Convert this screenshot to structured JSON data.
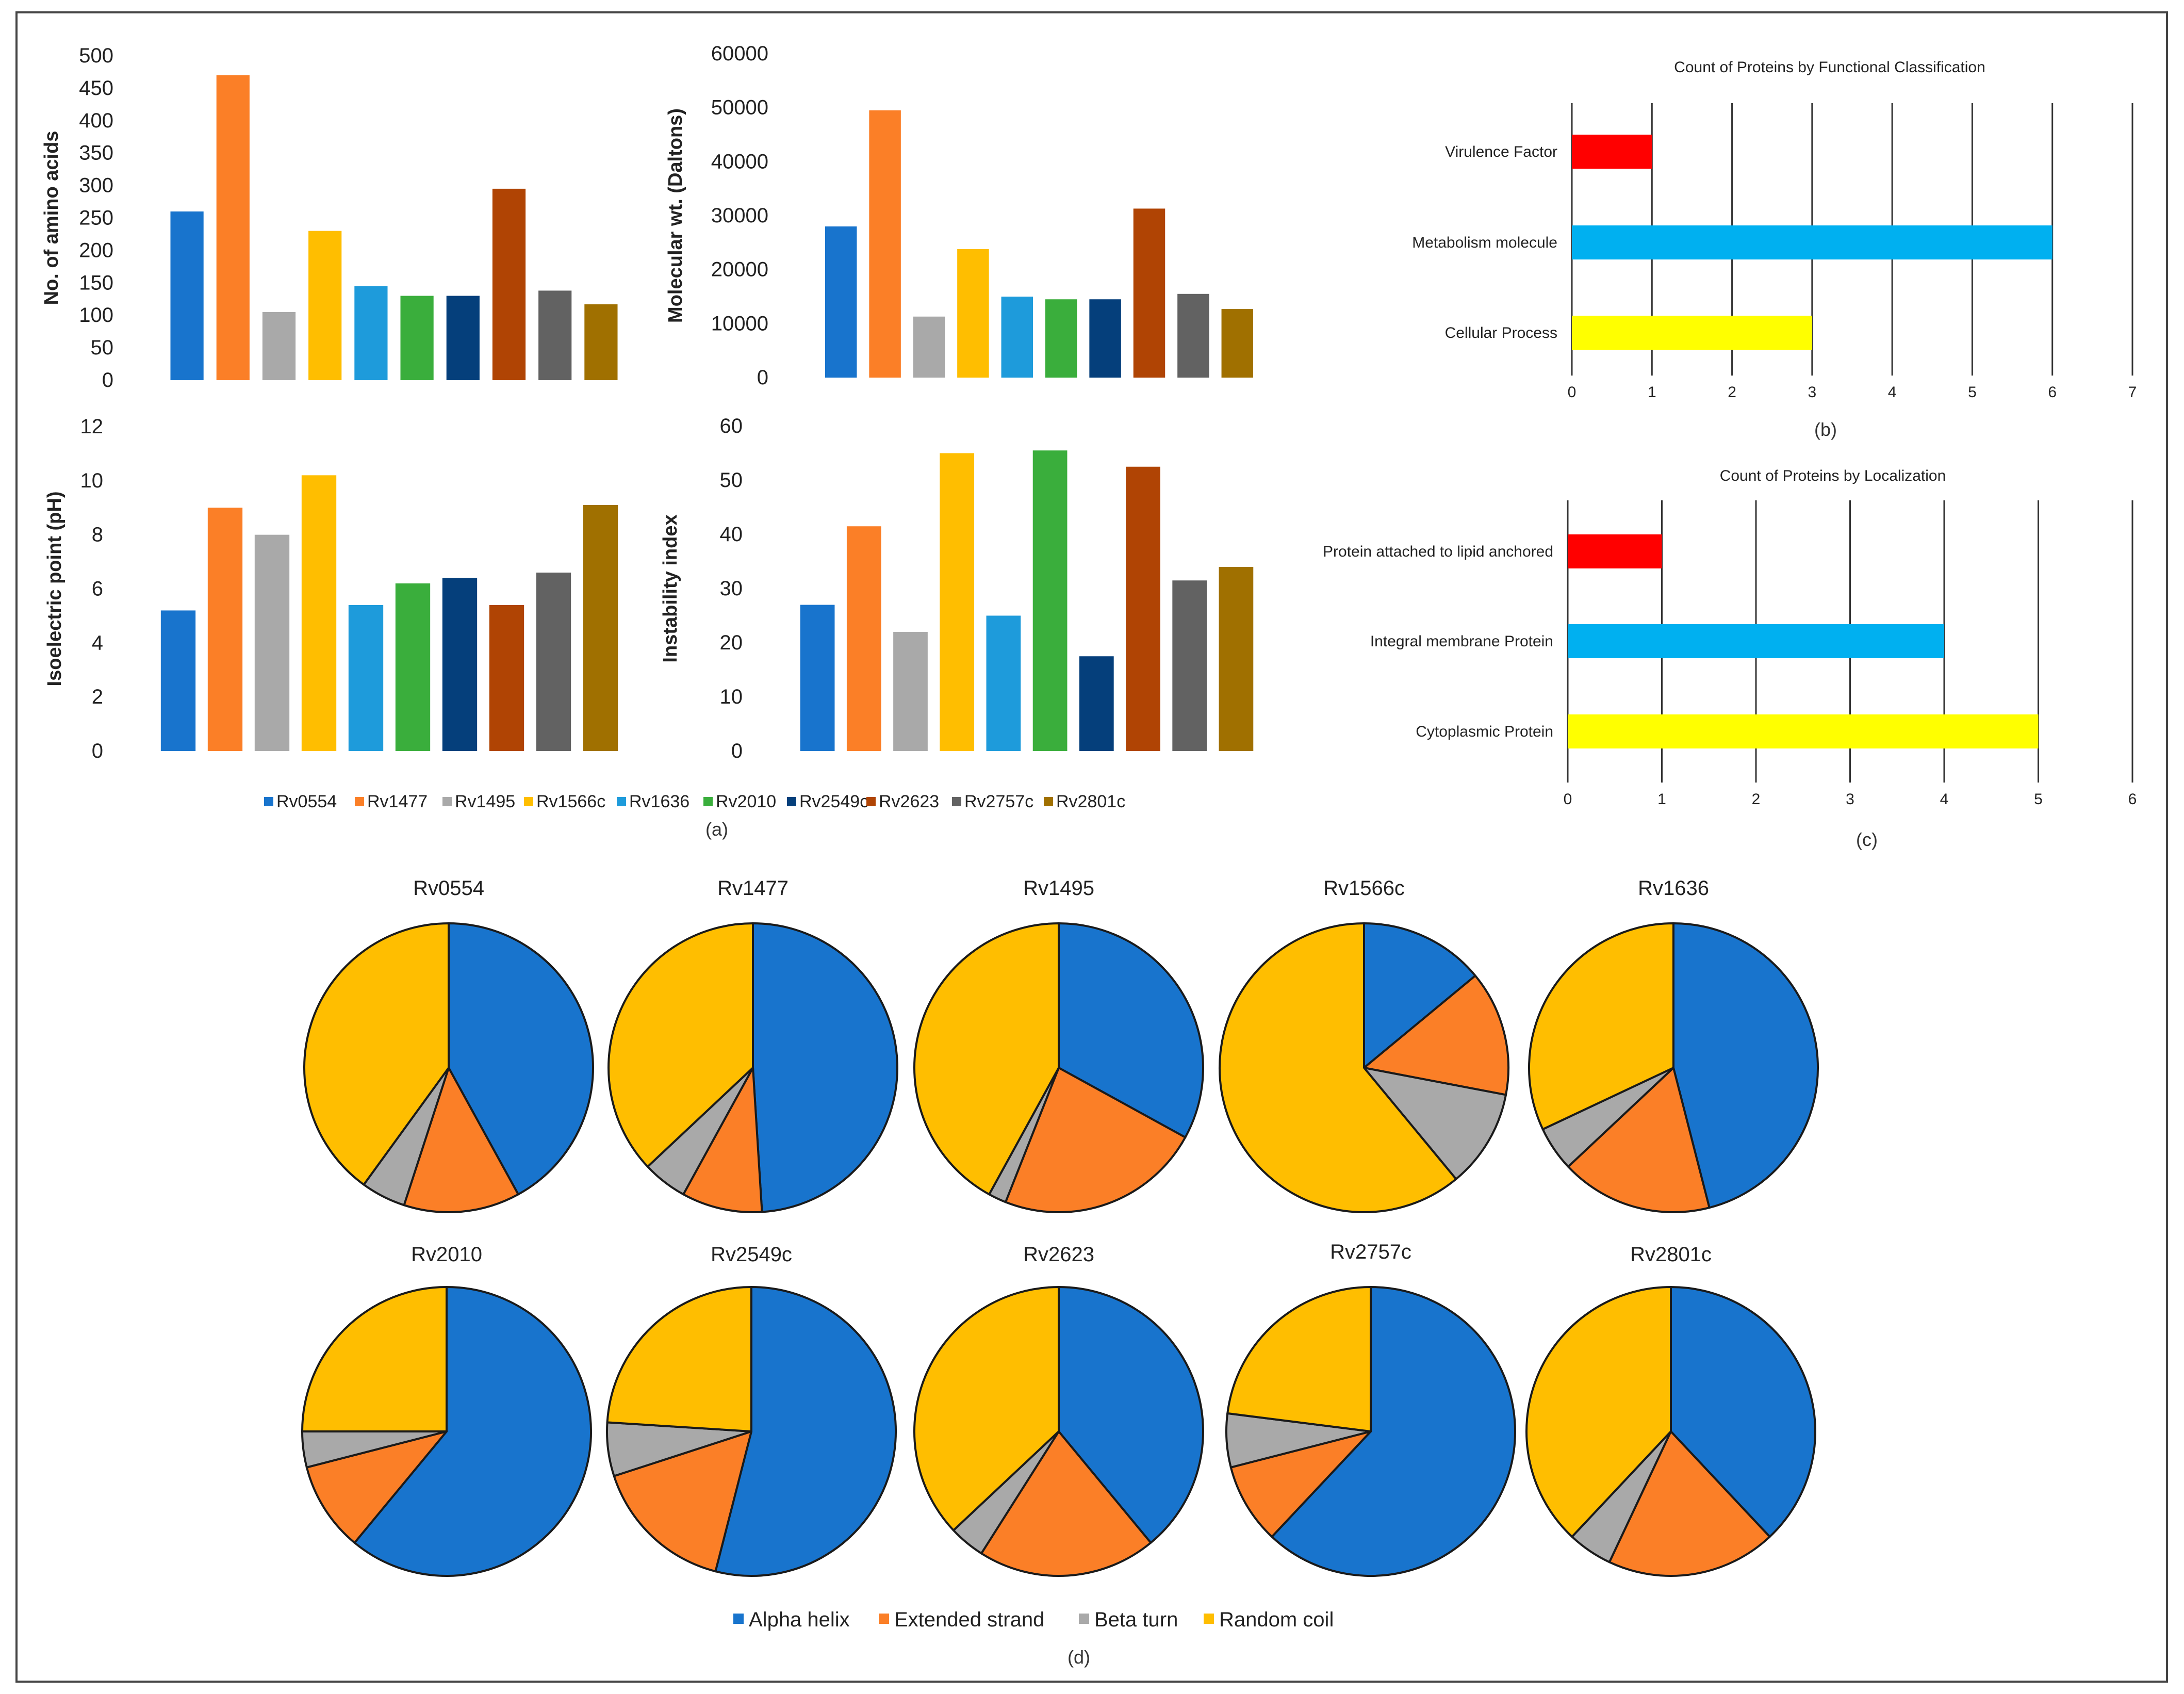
{
  "proteins": [
    "Rv0554",
    "Rv1477",
    "Rv1495",
    "Rv1566c",
    "Rv1636",
    "Rv2010",
    "Rv2549c",
    "Rv2623",
    "Rv2757c",
    "Rv2801c"
  ],
  "protein_colors": [
    "#1874cd",
    "#fb7f27",
    "#a9a9a9",
    "#ffbe00",
    "#1e9bdb",
    "#3aae3c",
    "#053f7b",
    "#b04404",
    "#626262",
    "#a07000"
  ],
  "panel_labels": {
    "a": "(a)",
    "b": "(b)",
    "c": "(c)",
    "d": "(d)"
  },
  "chart_data": [
    {
      "id": "amino-acids",
      "type": "bar",
      "categories": [
        "Rv0554",
        "Rv1477",
        "Rv1495",
        "Rv1566c",
        "Rv1636",
        "Rv2010",
        "Rv2549c",
        "Rv2623",
        "Rv2757c",
        "Rv2801c"
      ],
      "values": [
        260,
        470,
        105,
        230,
        145,
        130,
        130,
        295,
        138,
        117
      ],
      "ylabel": "No. of amino acids",
      "ylim": [
        0,
        500
      ],
      "yticks": [
        "0",
        "50",
        "100",
        "150",
        "200",
        "250",
        "300",
        "350",
        "400",
        "450",
        "500"
      ]
    },
    {
      "id": "molecular-weight",
      "type": "bar",
      "categories": [
        "Rv0554",
        "Rv1477",
        "Rv1495",
        "Rv1566c",
        "Rv1636",
        "Rv2010",
        "Rv2549c",
        "Rv2623",
        "Rv2757c",
        "Rv2801c"
      ],
      "values": [
        28000,
        49500,
        11300,
        23800,
        15000,
        14500,
        14500,
        31300,
        15500,
        12700
      ],
      "ylabel": "Molecular wt. (Daltons)",
      "ylim": [
        0,
        60000
      ],
      "yticks": [
        "0",
        "10000",
        "20000",
        "30000",
        "40000",
        "50000",
        "60000"
      ]
    },
    {
      "id": "isoelectric-point",
      "type": "bar",
      "categories": [
        "Rv0554",
        "Rv1477",
        "Rv1495",
        "Rv1566c",
        "Rv1636",
        "Rv2010",
        "Rv2549c",
        "Rv2623",
        "Rv2757c",
        "Rv2801c"
      ],
      "values": [
        5.2,
        9.0,
        8.0,
        10.2,
        5.4,
        6.2,
        6.4,
        5.4,
        6.6,
        9.1
      ],
      "ylabel": "Isoelectric point (pH)",
      "ylim": [
        0,
        12
      ],
      "yticks": [
        "0",
        "2",
        "4",
        "6",
        "8",
        "10",
        "12"
      ]
    },
    {
      "id": "instability-index",
      "type": "bar",
      "categories": [
        "Rv0554",
        "Rv1477",
        "Rv1495",
        "Rv1566c",
        "Rv1636",
        "Rv2010",
        "Rv2549c",
        "Rv2623",
        "Rv2757c",
        "Rv2801c"
      ],
      "values": [
        27,
        41.5,
        22,
        55,
        25,
        55.5,
        17.5,
        52.5,
        31.5,
        34
      ],
      "ylabel": "Instability index",
      "ylim": [
        0,
        60
      ],
      "yticks": [
        "0",
        "10",
        "20",
        "30",
        "40",
        "50",
        "60"
      ]
    },
    {
      "id": "functional-classification",
      "type": "bar",
      "orientation": "horizontal",
      "title": "Count of Proteins by Functional Classification",
      "categories": [
        "Virulence Factor",
        "Metabolism molecule",
        "Cellular Process"
      ],
      "values": [
        1,
        6,
        3
      ],
      "colors": [
        "#ff0000",
        "#00b0f0",
        "#ffff00"
      ],
      "xlim": [
        0,
        7
      ],
      "xticks": [
        "0",
        "1",
        "2",
        "3",
        "4",
        "5",
        "6",
        "7"
      ],
      "grid": true
    },
    {
      "id": "localization",
      "type": "bar",
      "orientation": "horizontal",
      "title": "Count of Proteins by Localization",
      "categories": [
        "Protein attached to lipid anchored",
        "Integral membrane Protein",
        "Cytoplasmic Protein"
      ],
      "values": [
        1,
        4,
        5
      ],
      "colors": [
        "#ff0000",
        "#00b0f0",
        "#ffff00"
      ],
      "xlim": [
        0,
        6
      ],
      "xticks": [
        "0",
        "1",
        "2",
        "3",
        "4",
        "5",
        "6"
      ],
      "grid": true
    },
    {
      "id": "secondary-structure",
      "type": "pie",
      "legend": [
        "Alpha helix",
        "Extended strand",
        "Beta turn",
        "Random coil"
      ],
      "colors": [
        "#1874cd",
        "#fb7f27",
        "#a9a9a9",
        "#ffbe00"
      ],
      "pies": [
        {
          "title": "Rv0554",
          "values": [
            42,
            13,
            5,
            40
          ]
        },
        {
          "title": "Rv1477",
          "values": [
            49,
            9,
            5,
            37
          ]
        },
        {
          "title": "Rv1495",
          "values": [
            33,
            23,
            2,
            42
          ]
        },
        {
          "title": "Rv1566c",
          "values": [
            14,
            14,
            11,
            61
          ]
        },
        {
          "title": "Rv1636",
          "values": [
            46,
            17,
            5,
            32
          ]
        },
        {
          "title": "Rv2010",
          "values": [
            61,
            10,
            4,
            25
          ]
        },
        {
          "title": "Rv2549c",
          "values": [
            54,
            16,
            6,
            24
          ]
        },
        {
          "title": "Rv2623",
          "values": [
            39,
            20,
            4,
            37
          ]
        },
        {
          "title": "Rv2757c",
          "values": [
            62,
            9,
            6,
            23
          ]
        },
        {
          "title": "Rv2801c",
          "values": [
            38,
            19,
            5,
            38
          ]
        }
      ]
    }
  ]
}
